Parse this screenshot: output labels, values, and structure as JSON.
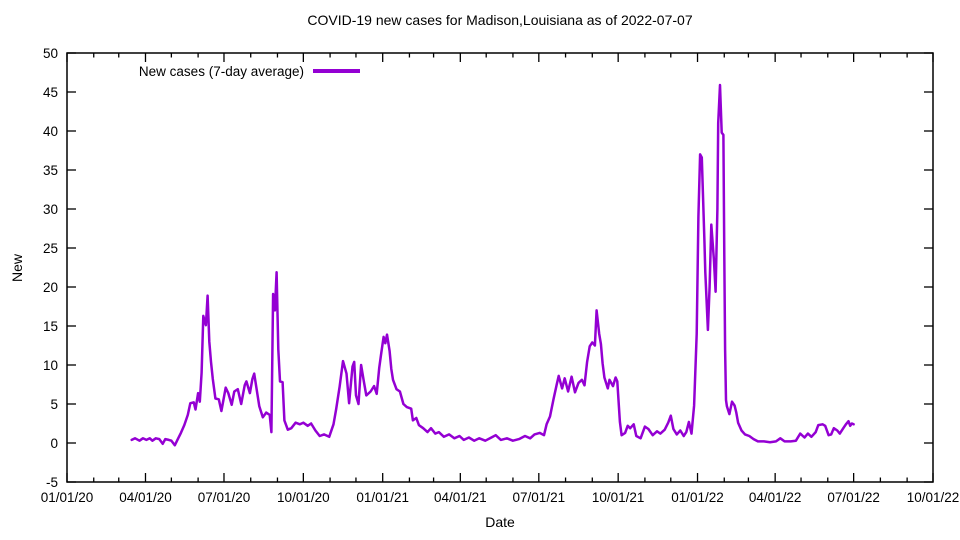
{
  "window": {
    "background": "#ffffff",
    "text_color": "#000000"
  },
  "chart_data": {
    "type": "line",
    "title": "COVID-19 new cases for Madison,Louisiana as of 2022-07-07",
    "xlabel": "Date",
    "ylabel": "New",
    "grid": false,
    "legend_position": "top-left-inside",
    "xlim": [
      "2020-01-01",
      "2022-10-01"
    ],
    "ylim": [
      -5,
      50
    ],
    "y_ticks": [
      -5,
      0,
      5,
      10,
      15,
      20,
      25,
      30,
      35,
      40,
      45,
      50
    ],
    "x_minor_tick_interval": "1 month",
    "x_ticks": [
      {
        "label": "01/01/20",
        "date": "2020-01-01"
      },
      {
        "label": "04/01/20",
        "date": "2020-04-01"
      },
      {
        "label": "07/01/20",
        "date": "2020-07-01"
      },
      {
        "label": "10/01/20",
        "date": "2020-10-01"
      },
      {
        "label": "01/01/21",
        "date": "2021-01-01"
      },
      {
        "label": "04/01/21",
        "date": "2021-04-01"
      },
      {
        "label": "07/01/21",
        "date": "2021-07-01"
      },
      {
        "label": "10/01/21",
        "date": "2021-10-01"
      },
      {
        "label": "01/01/22",
        "date": "2022-01-01"
      },
      {
        "label": "04/01/22",
        "date": "2022-04-01"
      },
      {
        "label": "07/01/22",
        "date": "2022-07-01"
      },
      {
        "label": "10/01/22",
        "date": "2022-10-01"
      }
    ],
    "series": [
      {
        "name": "New cases (7-day average)",
        "color": "#9400d3",
        "points": [
          [
            "2020-03-16",
            0.4
          ],
          [
            "2020-03-20",
            0.6
          ],
          [
            "2020-03-25",
            0.3
          ],
          [
            "2020-03-29",
            0.6
          ],
          [
            "2020-04-02",
            0.4
          ],
          [
            "2020-04-06",
            0.6
          ],
          [
            "2020-04-09",
            0.3
          ],
          [
            "2020-04-13",
            0.6
          ],
          [
            "2020-04-17",
            0.5
          ],
          [
            "2020-04-21",
            -0.1
          ],
          [
            "2020-04-24",
            0.5
          ],
          [
            "2020-04-28",
            0.4
          ],
          [
            "2020-05-01",
            0.3
          ],
          [
            "2020-05-05",
            -0.3
          ],
          [
            "2020-05-08",
            0.4
          ],
          [
            "2020-05-12",
            1.3
          ],
          [
            "2020-05-16",
            2.3
          ],
          [
            "2020-05-20",
            3.6
          ],
          [
            "2020-05-23",
            5.1
          ],
          [
            "2020-05-27",
            5.2
          ],
          [
            "2020-05-29",
            4.3
          ],
          [
            "2020-06-01",
            6.4
          ],
          [
            "2020-06-03",
            5.3
          ],
          [
            "2020-06-05",
            9.0
          ],
          [
            "2020-06-07",
            16.3
          ],
          [
            "2020-06-10",
            15.1
          ],
          [
            "2020-06-12",
            18.9
          ],
          [
            "2020-06-14",
            13.0
          ],
          [
            "2020-06-16",
            10.4
          ],
          [
            "2020-06-18",
            8.2
          ],
          [
            "2020-06-21",
            5.7
          ],
          [
            "2020-06-25",
            5.6
          ],
          [
            "2020-06-28",
            4.1
          ],
          [
            "2020-07-03",
            7.1
          ],
          [
            "2020-07-06",
            6.4
          ],
          [
            "2020-07-10",
            4.9
          ],
          [
            "2020-07-13",
            6.6
          ],
          [
            "2020-07-17",
            6.9
          ],
          [
            "2020-07-21",
            5.0
          ],
          [
            "2020-07-25",
            7.4
          ],
          [
            "2020-07-27",
            7.9
          ],
          [
            "2020-07-31",
            6.4
          ],
          [
            "2020-08-03",
            8.2
          ],
          [
            "2020-08-05",
            8.9
          ],
          [
            "2020-08-09",
            6.1
          ],
          [
            "2020-08-11",
            4.7
          ],
          [
            "2020-08-15",
            3.3
          ],
          [
            "2020-08-19",
            3.9
          ],
          [
            "2020-08-23",
            3.6
          ],
          [
            "2020-08-25",
            1.4
          ],
          [
            "2020-08-27",
            19.1
          ],
          [
            "2020-08-29",
            17.0
          ],
          [
            "2020-08-31",
            21.9
          ],
          [
            "2020-09-02",
            12.0
          ],
          [
            "2020-09-04",
            7.9
          ],
          [
            "2020-09-07",
            7.8
          ],
          [
            "2020-09-09",
            2.9
          ],
          [
            "2020-09-13",
            1.7
          ],
          [
            "2020-09-17",
            1.9
          ],
          [
            "2020-09-22",
            2.6
          ],
          [
            "2020-09-27",
            2.4
          ],
          [
            "2020-10-01",
            2.6
          ],
          [
            "2020-10-06",
            2.2
          ],
          [
            "2020-10-10",
            2.5
          ],
          [
            "2020-10-15",
            1.6
          ],
          [
            "2020-10-20",
            0.9
          ],
          [
            "2020-10-25",
            1.1
          ],
          [
            "2020-10-31",
            0.8
          ],
          [
            "2020-11-05",
            2.4
          ],
          [
            "2020-11-08",
            4.3
          ],
          [
            "2020-11-12",
            7.2
          ],
          [
            "2020-11-16",
            10.5
          ],
          [
            "2020-11-20",
            8.9
          ],
          [
            "2020-11-23",
            5.1
          ],
          [
            "2020-11-27",
            9.8
          ],
          [
            "2020-11-29",
            10.4
          ],
          [
            "2020-12-01",
            6.1
          ],
          [
            "2020-12-04",
            5.0
          ],
          [
            "2020-12-07",
            10.0
          ],
          [
            "2020-12-10",
            8.0
          ],
          [
            "2020-12-13",
            6.1
          ],
          [
            "2020-12-18",
            6.6
          ],
          [
            "2020-12-22",
            7.3
          ],
          [
            "2020-12-25",
            6.3
          ],
          [
            "2020-12-28",
            9.6
          ],
          [
            "2020-12-30",
            11.3
          ],
          [
            "2021-01-02",
            13.6
          ],
          [
            "2021-01-04",
            12.8
          ],
          [
            "2021-01-06",
            13.9
          ],
          [
            "2021-01-09",
            11.8
          ],
          [
            "2021-01-11",
            9.5
          ],
          [
            "2021-01-13",
            8.1
          ],
          [
            "2021-01-17",
            6.9
          ],
          [
            "2021-01-21",
            6.6
          ],
          [
            "2021-01-25",
            5.0
          ],
          [
            "2021-01-29",
            4.6
          ],
          [
            "2021-02-03",
            4.4
          ],
          [
            "2021-02-05",
            2.9
          ],
          [
            "2021-02-09",
            3.2
          ],
          [
            "2021-02-12",
            2.3
          ],
          [
            "2021-02-17",
            1.9
          ],
          [
            "2021-02-22",
            1.4
          ],
          [
            "2021-02-26",
            1.9
          ],
          [
            "2021-03-03",
            1.2
          ],
          [
            "2021-03-07",
            1.4
          ],
          [
            "2021-03-13",
            0.8
          ],
          [
            "2021-03-19",
            1.1
          ],
          [
            "2021-03-25",
            0.6
          ],
          [
            "2021-03-31",
            0.9
          ],
          [
            "2021-04-05",
            0.4
          ],
          [
            "2021-04-11",
            0.7
          ],
          [
            "2021-04-17",
            0.3
          ],
          [
            "2021-04-23",
            0.6
          ],
          [
            "2021-04-30",
            0.3
          ],
          [
            "2021-05-07",
            0.7
          ],
          [
            "2021-05-12",
            1.0
          ],
          [
            "2021-05-18",
            0.4
          ],
          [
            "2021-05-25",
            0.6
          ],
          [
            "2021-06-01",
            0.3
          ],
          [
            "2021-06-08",
            0.5
          ],
          [
            "2021-06-15",
            0.9
          ],
          [
            "2021-06-21",
            0.6
          ],
          [
            "2021-06-26",
            1.1
          ],
          [
            "2021-07-02",
            1.3
          ],
          [
            "2021-07-07",
            1.0
          ],
          [
            "2021-07-10",
            2.4
          ],
          [
            "2021-07-14",
            3.4
          ],
          [
            "2021-07-18",
            5.6
          ],
          [
            "2021-07-22",
            7.6
          ],
          [
            "2021-07-24",
            8.6
          ],
          [
            "2021-07-28",
            7.0
          ],
          [
            "2021-07-31",
            8.3
          ],
          [
            "2021-08-04",
            6.6
          ],
          [
            "2021-08-08",
            8.5
          ],
          [
            "2021-08-12",
            6.5
          ],
          [
            "2021-08-16",
            7.7
          ],
          [
            "2021-08-20",
            8.1
          ],
          [
            "2021-08-23",
            7.4
          ],
          [
            "2021-08-26",
            10.4
          ],
          [
            "2021-08-29",
            12.4
          ],
          [
            "2021-09-01",
            12.9
          ],
          [
            "2021-09-04",
            12.5
          ],
          [
            "2021-09-06",
            17.0
          ],
          [
            "2021-09-09",
            14.0
          ],
          [
            "2021-09-11",
            12.7
          ],
          [
            "2021-09-13",
            10.2
          ],
          [
            "2021-09-15",
            8.4
          ],
          [
            "2021-09-19",
            7.0
          ],
          [
            "2021-09-21",
            8.1
          ],
          [
            "2021-09-25",
            7.3
          ],
          [
            "2021-09-28",
            8.4
          ],
          [
            "2021-09-30",
            7.9
          ],
          [
            "2021-10-03",
            2.7
          ],
          [
            "2021-10-05",
            1.0
          ],
          [
            "2021-10-09",
            1.3
          ],
          [
            "2021-10-12",
            2.2
          ],
          [
            "2021-10-15",
            1.9
          ],
          [
            "2021-10-19",
            2.4
          ],
          [
            "2021-10-22",
            0.9
          ],
          [
            "2021-10-27",
            0.6
          ],
          [
            "2021-11-01",
            2.1
          ],
          [
            "2021-11-05",
            1.8
          ],
          [
            "2021-11-10",
            1.0
          ],
          [
            "2021-11-15",
            1.5
          ],
          [
            "2021-11-19",
            1.2
          ],
          [
            "2021-11-24",
            1.7
          ],
          [
            "2021-11-28",
            2.6
          ],
          [
            "2021-12-01",
            3.5
          ],
          [
            "2021-12-04",
            1.8
          ],
          [
            "2021-12-08",
            1.1
          ],
          [
            "2021-12-12",
            1.6
          ],
          [
            "2021-12-16",
            0.9
          ],
          [
            "2021-12-19",
            1.4
          ],
          [
            "2021-12-22",
            2.7
          ],
          [
            "2021-12-25",
            1.2
          ],
          [
            "2021-12-28",
            4.8
          ],
          [
            "2021-12-31",
            14.0
          ],
          [
            "2022-01-02",
            29.0
          ],
          [
            "2022-01-04",
            37.0
          ],
          [
            "2022-01-06",
            36.6
          ],
          [
            "2022-01-09",
            26.0
          ],
          [
            "2022-01-10",
            21.9
          ],
          [
            "2022-01-13",
            14.5
          ],
          [
            "2022-01-15",
            20.0
          ],
          [
            "2022-01-17",
            28.0
          ],
          [
            "2022-01-20",
            23.5
          ],
          [
            "2022-01-22",
            19.4
          ],
          [
            "2022-01-24",
            30.0
          ],
          [
            "2022-01-25",
            41.0
          ],
          [
            "2022-01-27",
            45.9
          ],
          [
            "2022-01-28",
            43.0
          ],
          [
            "2022-01-29",
            39.8
          ],
          [
            "2022-01-31",
            39.5
          ],
          [
            "2022-02-01",
            24.0
          ],
          [
            "2022-02-02",
            12.0
          ],
          [
            "2022-02-03",
            5.5
          ],
          [
            "2022-02-04",
            4.7
          ],
          [
            "2022-02-07",
            3.7
          ],
          [
            "2022-02-10",
            5.3
          ],
          [
            "2022-02-13",
            4.8
          ],
          [
            "2022-02-15",
            3.9
          ],
          [
            "2022-02-17",
            2.6
          ],
          [
            "2022-02-21",
            1.6
          ],
          [
            "2022-02-25",
            1.1
          ],
          [
            "2022-03-02",
            0.9
          ],
          [
            "2022-03-07",
            0.5
          ],
          [
            "2022-03-12",
            0.2
          ],
          [
            "2022-03-19",
            0.2
          ],
          [
            "2022-03-26",
            0.1
          ],
          [
            "2022-04-02",
            0.2
          ],
          [
            "2022-04-07",
            0.6
          ],
          [
            "2022-04-12",
            0.2
          ],
          [
            "2022-04-19",
            0.2
          ],
          [
            "2022-04-25",
            0.3
          ],
          [
            "2022-04-30",
            1.2
          ],
          [
            "2022-05-05",
            0.7
          ],
          [
            "2022-05-09",
            1.2
          ],
          [
            "2022-05-13",
            0.8
          ],
          [
            "2022-05-18",
            1.4
          ],
          [
            "2022-05-21",
            2.3
          ],
          [
            "2022-05-26",
            2.4
          ],
          [
            "2022-05-29",
            2.2
          ],
          [
            "2022-06-02",
            1.0
          ],
          [
            "2022-06-05",
            1.1
          ],
          [
            "2022-06-08",
            1.9
          ],
          [
            "2022-06-12",
            1.6
          ],
          [
            "2022-06-15",
            1.2
          ],
          [
            "2022-06-19",
            1.9
          ],
          [
            "2022-06-22",
            2.4
          ],
          [
            "2022-06-25",
            2.8
          ],
          [
            "2022-06-27",
            2.2
          ],
          [
            "2022-06-29",
            2.5
          ],
          [
            "2022-07-01",
            2.4
          ]
        ]
      }
    ]
  }
}
